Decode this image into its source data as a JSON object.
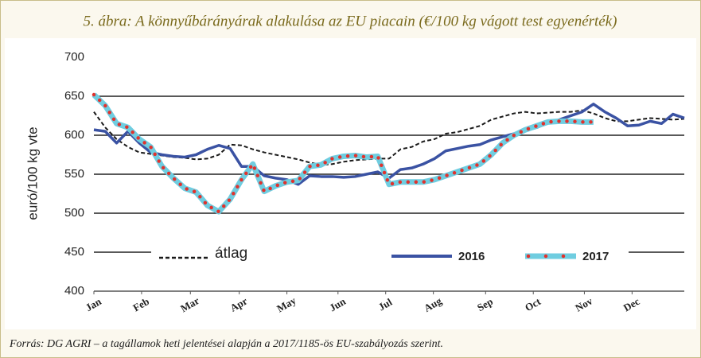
{
  "chart_data": {
    "type": "line",
    "title": "5. ábra: A könnyűbárányárak alakulása az EU piacain (€/100 kg vágott test egyenérték)",
    "y_label": "euró/100 kg vte",
    "source": "Forrás: DG AGRI – a tagállamok heti jelentései alapján a 2017/1185-ös EU-szabályozás szerint.",
    "x": [
      1,
      2,
      3,
      4,
      5,
      6,
      7,
      8,
      9,
      10,
      11,
      12,
      13,
      14,
      15,
      16,
      17,
      18,
      19,
      20,
      21,
      22,
      23,
      24,
      25,
      26,
      27,
      28,
      29,
      30,
      31,
      32,
      33,
      34,
      35,
      36,
      37,
      38,
      39,
      40,
      41,
      42,
      43,
      44,
      45,
      46,
      47,
      48,
      49,
      50,
      51,
      52,
      53
    ],
    "xlim": [
      1,
      53
    ],
    "xticks": [
      {
        "value": 1,
        "label": "Jan"
      },
      {
        "value": 5.2,
        "label": "Feb"
      },
      {
        "value": 9.5,
        "label": "Mar"
      },
      {
        "value": 13.8,
        "label": "Apr"
      },
      {
        "value": 18,
        "label": "May"
      },
      {
        "value": 22.5,
        "label": "Jun"
      },
      {
        "value": 26.7,
        "label": "Jul"
      },
      {
        "value": 30.9,
        "label": "Aug"
      },
      {
        "value": 35.5,
        "label": "Sep"
      },
      {
        "value": 39.7,
        "label": "Oct"
      },
      {
        "value": 44.2,
        "label": "Nov"
      },
      {
        "value": 48.4,
        "label": "Dec"
      }
    ],
    "ylim": [
      400,
      700
    ],
    "yticks": [
      400,
      450,
      500,
      550,
      600,
      650,
      700
    ],
    "grid": true,
    "series": [
      {
        "name": "átlag",
        "color": "#1a1a1a",
        "style": "dashed",
        "values": [
          630,
          610,
          595,
          585,
          578,
          576,
          574,
          572,
          571,
          569,
          570,
          575,
          588,
          587,
          582,
          578,
          575,
          572,
          569,
          565,
          562,
          563,
          566,
          568,
          569,
          570,
          570,
          582,
          585,
          592,
          595,
          602,
          604,
          608,
          612,
          620,
          624,
          628,
          630,
          628,
          629,
          630,
          630,
          632,
          628,
          622,
          618,
          618,
          620,
          622,
          621,
          620,
          621
        ]
      },
      {
        "name": "2016",
        "color": "#3a52a3",
        "style": "solid",
        "values": [
          607,
          605,
          590,
          605,
          590,
          578,
          575,
          573,
          572,
          575,
          582,
          587,
          583,
          560,
          560,
          548,
          545,
          543,
          537,
          548,
          547,
          547,
          546,
          547,
          550,
          553,
          545,
          556,
          558,
          563,
          570,
          580,
          583,
          586,
          588,
          594,
          598,
          602,
          606,
          610,
          616,
          620,
          625,
          630,
          640,
          630,
          622,
          612,
          613,
          618,
          615,
          627,
          622
        ]
      },
      {
        "name": "2017",
        "color": "#6fcde0",
        "dot_color": "#e0322d",
        "style": "dotted",
        "values": [
          652,
          638,
          615,
          610,
          595,
          585,
          560,
          545,
          532,
          527,
          510,
          502,
          518,
          543,
          563,
          528,
          535,
          540,
          542,
          560,
          562,
          570,
          573,
          574,
          572,
          573,
          537,
          540,
          540,
          540,
          543,
          548,
          553,
          558,
          563,
          575,
          590,
          600,
          607,
          612,
          617,
          618,
          618,
          617,
          617,
          null,
          null,
          null,
          null,
          null,
          null,
          null,
          null
        ]
      }
    ]
  }
}
